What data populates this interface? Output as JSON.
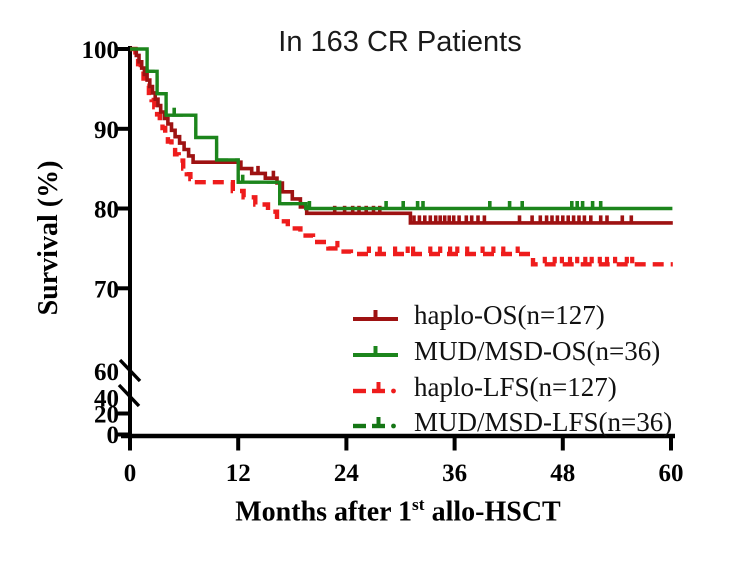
{
  "figure": {
    "title": "In 163 CR Patients",
    "ylabel": "Survival (%)",
    "xlabel_pre": "Months after 1",
    "xlabel_sup": "st",
    "xlabel_post": " allo-HSCT"
  },
  "chart_data": {
    "type": "line",
    "subtype": "kaplan-meier-step",
    "title": "In 163 CR Patients",
    "xlabel": "Months after 1st allo-HSCT",
    "ylabel": "Survival (%)",
    "x_ticks": [
      0,
      12,
      24,
      36,
      48,
      60
    ],
    "y_ticks_main": [
      100,
      90,
      80,
      70,
      60
    ],
    "y_ticks_compressed": [
      40,
      20,
      0
    ],
    "y_axis_break": true,
    "xlim": [
      0,
      60
    ],
    "ylim_main": [
      60,
      100
    ],
    "grid": false,
    "legend_position": "inside-right-middle",
    "series": [
      {
        "name": "haplo-OS(n=127)",
        "color": "#9E1212",
        "style": "solid",
        "end": 60.2,
        "points": [
          [
            0,
            100
          ],
          [
            0.7,
            99.2
          ],
          [
            1.0,
            98.4
          ],
          [
            1.3,
            97.6
          ],
          [
            1.6,
            96.8
          ],
          [
            1.9,
            96.1
          ],
          [
            2.2,
            95.3
          ],
          [
            2.5,
            94.5
          ],
          [
            2.8,
            93.7
          ],
          [
            3.1,
            92.9
          ],
          [
            3.4,
            92.1
          ],
          [
            3.8,
            91.3
          ],
          [
            4.2,
            90.6
          ],
          [
            4.6,
            89.8
          ],
          [
            5.0,
            89.0
          ],
          [
            5.5,
            88.2
          ],
          [
            6.0,
            87.4
          ],
          [
            6.5,
            86.6
          ],
          [
            7.0,
            85.8
          ],
          [
            12.3,
            85.0
          ],
          [
            13.5,
            84.4
          ],
          [
            15.0,
            83.8
          ],
          [
            16.3,
            83.2
          ],
          [
            16.9,
            82.1
          ],
          [
            18.0,
            81.2
          ],
          [
            18.9,
            80.2
          ],
          [
            19.6,
            79.4
          ],
          [
            31.1,
            78.2
          ]
        ],
        "censor_marks": [
          14.2,
          15.9,
          22.7,
          23.8,
          24.7,
          25.4,
          26.2,
          27.0,
          27.7,
          31.5,
          32.1,
          32.7,
          33.3,
          33.9,
          34.4,
          34.9,
          35.4,
          35.9,
          36.5,
          37.3,
          37.9,
          38.6,
          39.3,
          43.2,
          44.6,
          45.5,
          46.2,
          46.8,
          47.4,
          48.0,
          48.6,
          49.2,
          49.8,
          50.4,
          51.1,
          52.2,
          52.9,
          54.6,
          55.6
        ]
      },
      {
        "name": "MUD/MSD-OS(n=36)",
        "color": "#1C851C",
        "style": "solid",
        "end": 60.15,
        "points": [
          [
            0,
            100
          ],
          [
            1.9,
            97.2
          ],
          [
            3.0,
            94.4
          ],
          [
            4.0,
            91.7
          ],
          [
            7.3,
            88.9
          ],
          [
            9.6,
            86.1
          ],
          [
            12.0,
            83.3
          ],
          [
            16.6,
            80.6
          ],
          [
            19.5,
            80.0
          ]
        ],
        "censor_marks": [
          4.9,
          12.5,
          19.9,
          28.4,
          30.3,
          31.9,
          32.5,
          39.9,
          42.1,
          43.5,
          49.0,
          49.6,
          50.2,
          51.3,
          52.2
        ]
      },
      {
        "name": "haplo-LFS(n=127)",
        "color": "#EE1C1C",
        "style": "dashed",
        "end": 60.2,
        "points": [
          [
            0,
            100
          ],
          [
            0.6,
            99.0
          ],
          [
            0.9,
            98.1
          ],
          [
            1.2,
            97.2
          ],
          [
            1.5,
            96.3
          ],
          [
            1.8,
            95.4
          ],
          [
            2.1,
            94.5
          ],
          [
            2.4,
            93.6
          ],
          [
            2.7,
            92.7
          ],
          [
            3.0,
            91.8
          ],
          [
            3.3,
            90.9
          ],
          [
            3.6,
            90.1
          ],
          [
            3.9,
            89.2
          ],
          [
            4.2,
            88.4
          ],
          [
            4.6,
            87.6
          ],
          [
            5.0,
            86.8
          ],
          [
            5.4,
            86.0
          ],
          [
            5.9,
            85.0
          ],
          [
            6.3,
            84.3
          ],
          [
            6.7,
            83.7
          ],
          [
            7.1,
            83.3
          ],
          [
            11.4,
            82.2
          ],
          [
            12.6,
            81.4
          ],
          [
            13.9,
            80.5
          ],
          [
            15.3,
            79.6
          ],
          [
            16.3,
            78.4
          ],
          [
            17.5,
            77.5
          ],
          [
            18.9,
            76.6
          ],
          [
            20.3,
            75.8
          ],
          [
            22.0,
            75.0
          ],
          [
            23.3,
            74.6
          ],
          [
            24.5,
            74.3
          ],
          [
            44.7,
            73.0
          ]
        ],
        "censor_marks": [
          23.0,
          26.5,
          27.7,
          29.4,
          30.8,
          31.4,
          33.3,
          34.4,
          35.5,
          36.3,
          37.4,
          39.1,
          40.3,
          41.4,
          43.0,
          46.0,
          47.1,
          47.9,
          48.8,
          49.6,
          50.5,
          51.2,
          52.1,
          52.9,
          53.8,
          55.1,
          55.7
        ]
      },
      {
        "name": "MUD/MSD-LFS(n=36)",
        "color": "#157615",
        "style": "dashed",
        "end": 60.15,
        "coincident_with": "MUD/MSD-OS(n=36)",
        "points": [
          [
            0,
            100
          ],
          [
            1.9,
            97.2
          ],
          [
            3.0,
            94.4
          ],
          [
            4.0,
            91.7
          ],
          [
            7.3,
            88.9
          ],
          [
            9.6,
            86.1
          ],
          [
            12.0,
            83.3
          ],
          [
            16.6,
            80.6
          ],
          [
            19.5,
            80.0
          ]
        ],
        "censor_marks": []
      }
    ]
  }
}
